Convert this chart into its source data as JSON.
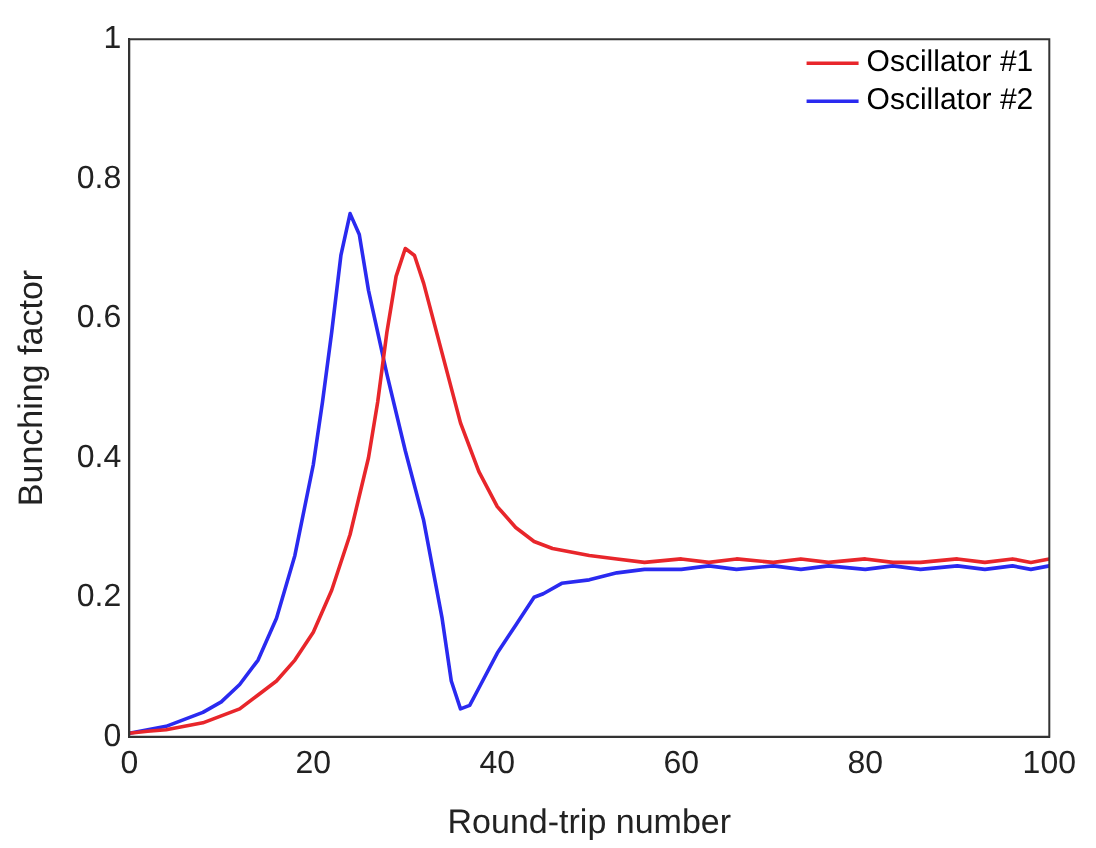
{
  "chart_data": {
    "type": "line",
    "xlabel": "Round-trip number",
    "ylabel": "Bunching factor",
    "xlim": [
      0,
      100
    ],
    "xticks": [
      0,
      20,
      40,
      60,
      80,
      100
    ],
    "ylim": [
      0,
      1
    ],
    "yticks": [
      0,
      0.2,
      0.4,
      0.6,
      0.8,
      1
    ],
    "grid": false,
    "legend": "top right",
    "marker": "none",
    "line_style": "solid",
    "series": [
      {
        "name": "Oscillator #1",
        "color": "#e8262b",
        "x": [
          0,
          2,
          4,
          6,
          8,
          10,
          12,
          14,
          16,
          18,
          20,
          22,
          24,
          26,
          27,
          28,
          29,
          30,
          31,
          32,
          34,
          36,
          38,
          40,
          42,
          44,
          46,
          48,
          50,
          53,
          56,
          60,
          63,
          66,
          70,
          73,
          76,
          80,
          83,
          86,
          90,
          93,
          96,
          98,
          100
        ],
        "values": [
          0.005,
          0.008,
          0.01,
          0.015,
          0.02,
          0.03,
          0.04,
          0.06,
          0.08,
          0.11,
          0.15,
          0.21,
          0.29,
          0.4,
          0.48,
          0.58,
          0.66,
          0.7,
          0.69,
          0.65,
          0.55,
          0.45,
          0.38,
          0.33,
          0.3,
          0.28,
          0.27,
          0.265,
          0.26,
          0.255,
          0.25,
          0.255,
          0.25,
          0.255,
          0.25,
          0.255,
          0.25,
          0.255,
          0.25,
          0.25,
          0.255,
          0.25,
          0.255,
          0.25,
          0.255
        ]
      },
      {
        "name": "Oscillator #2",
        "color": "#2a2af0",
        "x": [
          0,
          2,
          4,
          6,
          8,
          10,
          12,
          14,
          16,
          18,
          20,
          21,
          22,
          23,
          24,
          25,
          26,
          28,
          30,
          32,
          34,
          35,
          36,
          37,
          38,
          40,
          42,
          44,
          45,
          47,
          50,
          53,
          56,
          60,
          63,
          66,
          70,
          73,
          76,
          80,
          83,
          86,
          90,
          93,
          96,
          98,
          100
        ],
        "values": [
          0.005,
          0.01,
          0.015,
          0.025,
          0.035,
          0.05,
          0.075,
          0.11,
          0.17,
          0.26,
          0.39,
          0.48,
          0.58,
          0.69,
          0.75,
          0.72,
          0.64,
          0.52,
          0.41,
          0.31,
          0.17,
          0.08,
          0.04,
          0.045,
          0.07,
          0.12,
          0.16,
          0.2,
          0.205,
          0.22,
          0.225,
          0.235,
          0.24,
          0.24,
          0.245,
          0.24,
          0.245,
          0.24,
          0.245,
          0.24,
          0.245,
          0.24,
          0.245,
          0.24,
          0.245,
          0.24,
          0.245
        ]
      }
    ]
  }
}
